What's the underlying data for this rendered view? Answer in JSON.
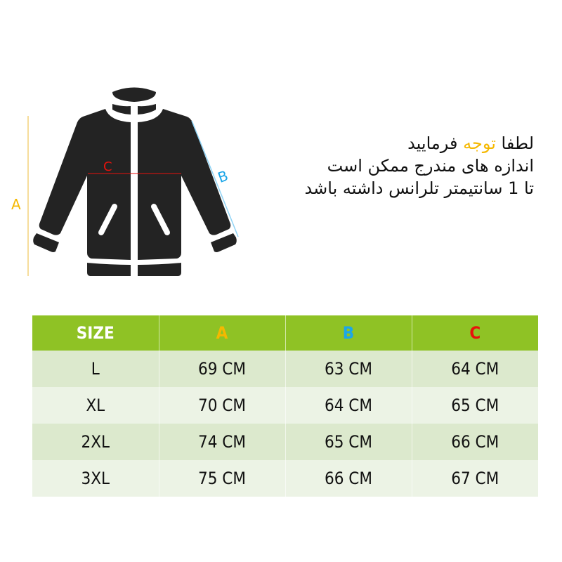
{
  "diagram": {
    "labels": {
      "a": "A",
      "b": "B",
      "c": "C"
    },
    "colors": {
      "a": "#f5b800",
      "b": "#1ca6e8",
      "c": "#e8120c",
      "jacket": "#232323"
    }
  },
  "note": {
    "line1_start": "لطفا",
    "line1_highlight": "توجه",
    "line1_end": "فرمایید",
    "line2": "اندازه های مندرج ممکن است",
    "line3": "تا 1 سانتیمتر تلرانس داشته باشد",
    "highlight_color": "#f5b800"
  },
  "table": {
    "headers": [
      "SIZE",
      "A",
      "B",
      "C"
    ],
    "header_bg": "#8fc225",
    "rows": [
      [
        "L",
        "69 CM",
        "63 CM",
        "64 CM"
      ],
      [
        "XL",
        "70 CM",
        "64 CM",
        "65 CM"
      ],
      [
        "2XL",
        "74 CM",
        "65 CM",
        "66 CM"
      ],
      [
        "3XL",
        "75 CM",
        "66 CM",
        "67 CM"
      ]
    ]
  }
}
